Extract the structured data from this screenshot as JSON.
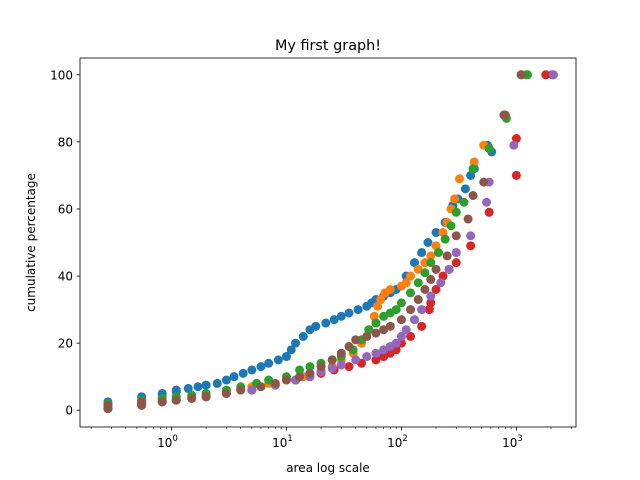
{
  "chart_data": {
    "type": "scatter",
    "title": "My first graph!",
    "xlabel": "area log scale",
    "ylabel": "cumulative percentage",
    "xscale": "log",
    "xlim": [
      0.16,
      3300
    ],
    "ylim": [
      -5,
      105
    ],
    "grid": false,
    "legend": "none",
    "x_ticks": [
      {
        "value": 1,
        "base": "10",
        "exp": "0"
      },
      {
        "value": 10,
        "base": "10",
        "exp": "1"
      },
      {
        "value": 100,
        "base": "10",
        "exp": "2"
      },
      {
        "value": 1000,
        "base": "10",
        "exp": "3"
      }
    ],
    "y_ticks": [
      {
        "value": 0,
        "label": "0"
      },
      {
        "value": 20,
        "label": "20"
      },
      {
        "value": 40,
        "label": "40"
      },
      {
        "value": 60,
        "label": "60"
      },
      {
        "value": 80,
        "label": "80"
      },
      {
        "value": 100,
        "label": "100"
      }
    ],
    "series": [
      {
        "color": "#1f77b4",
        "points": [
          [
            0.28,
            0.5
          ],
          [
            0.28,
            1.5
          ],
          [
            0.28,
            2.5
          ],
          [
            0.55,
            2.0
          ],
          [
            0.55,
            3.0
          ],
          [
            0.55,
            4.0
          ],
          [
            0.83,
            4.0
          ],
          [
            0.83,
            5.0
          ],
          [
            1.1,
            5.5
          ],
          [
            1.1,
            6.0
          ],
          [
            1.4,
            6.5
          ],
          [
            1.7,
            7.0
          ],
          [
            2.0,
            7.5
          ],
          [
            2.5,
            8.0
          ],
          [
            3.0,
            9.0
          ],
          [
            3.5,
            10.0
          ],
          [
            4.2,
            11.0
          ],
          [
            5.0,
            12.0
          ],
          [
            6.0,
            13.0
          ],
          [
            7.0,
            14.0
          ],
          [
            8.5,
            15.0
          ],
          [
            10,
            16.0
          ],
          [
            11,
            18.0
          ],
          [
            12,
            20.0
          ],
          [
            14,
            22.0
          ],
          [
            16,
            24.0
          ],
          [
            18,
            25.0
          ],
          [
            22,
            26.0
          ],
          [
            26,
            27.0
          ],
          [
            30,
            28.0
          ],
          [
            35,
            29.0
          ],
          [
            42,
            30.0
          ],
          [
            50,
            31.0
          ],
          [
            55,
            32.0
          ],
          [
            60,
            33.0
          ],
          [
            70,
            34.0
          ],
          [
            80,
            35.0
          ],
          [
            90,
            36.0
          ],
          [
            110,
            40.0
          ],
          [
            130,
            44.0
          ],
          [
            150,
            47.0
          ],
          [
            170,
            50.0
          ],
          [
            200,
            53.0
          ],
          [
            240,
            56.0
          ],
          [
            280,
            61.0
          ],
          [
            310,
            63.0
          ],
          [
            360,
            66.0
          ],
          [
            400,
            70.0
          ],
          [
            430,
            72.0
          ],
          [
            560,
            79.0
          ],
          [
            610,
            77.0
          ],
          [
            1100,
            100.0
          ],
          [
            2050,
            100.0
          ]
        ]
      },
      {
        "color": "#ff7f0e",
        "points": [
          [
            0.28,
            0.5
          ],
          [
            0.28,
            1.5
          ],
          [
            0.55,
            1.5
          ],
          [
            0.55,
            2.5
          ],
          [
            0.83,
            3.0
          ],
          [
            1.1,
            3.5
          ],
          [
            1.5,
            4.0
          ],
          [
            2.0,
            4.5
          ],
          [
            3.0,
            5.5
          ],
          [
            4.0,
            6.5
          ],
          [
            5.0,
            7.0
          ],
          [
            7.0,
            8.0
          ],
          [
            10,
            9.0
          ],
          [
            14,
            10.0
          ],
          [
            20,
            12.0
          ],
          [
            25,
            13.0
          ],
          [
            30,
            15.0
          ],
          [
            38,
            17.0
          ],
          [
            45,
            20.0
          ],
          [
            52,
            24.0
          ],
          [
            58,
            28.0
          ],
          [
            62,
            31.0
          ],
          [
            66,
            33.0
          ],
          [
            72,
            35.0
          ],
          [
            80,
            36.0
          ],
          [
            100,
            37.0
          ],
          [
            110,
            38.0
          ],
          [
            120,
            40.0
          ],
          [
            140,
            42.0
          ],
          [
            160,
            44.0
          ],
          [
            180,
            46.0
          ],
          [
            200,
            49.0
          ],
          [
            230,
            53.0
          ],
          [
            250,
            56.0
          ],
          [
            270,
            60.0
          ],
          [
            290,
            63.0
          ],
          [
            320,
            69.0
          ],
          [
            430,
            74.0
          ],
          [
            520,
            79.0
          ],
          [
            780,
            88.0
          ],
          [
            1200,
            100.0
          ]
        ]
      },
      {
        "color": "#2ca02c",
        "points": [
          [
            0.28,
            0.5
          ],
          [
            0.28,
            2.0
          ],
          [
            0.55,
            2.0
          ],
          [
            0.55,
            3.0
          ],
          [
            0.83,
            3.5
          ],
          [
            1.1,
            4.0
          ],
          [
            1.5,
            4.5
          ],
          [
            2.0,
            5.0
          ],
          [
            3.0,
            6.0
          ],
          [
            4.0,
            7.0
          ],
          [
            5.5,
            8.0
          ],
          [
            7.0,
            9.0
          ],
          [
            10,
            10.0
          ],
          [
            13,
            12.0
          ],
          [
            16,
            13.0
          ],
          [
            20,
            14.0
          ],
          [
            25,
            15.0
          ],
          [
            30,
            16.0
          ],
          [
            38,
            18.0
          ],
          [
            45,
            21.0
          ],
          [
            52,
            24.0
          ],
          [
            60,
            26.0
          ],
          [
            70,
            28.0
          ],
          [
            80,
            29.0
          ],
          [
            90,
            30.0
          ],
          [
            100,
            32.0
          ],
          [
            120,
            35.0
          ],
          [
            140,
            38.0
          ],
          [
            160,
            41.0
          ],
          [
            180,
            44.0
          ],
          [
            210,
            47.0
          ],
          [
            240,
            51.0
          ],
          [
            270,
            55.0
          ],
          [
            300,
            59.0
          ],
          [
            350,
            62.0
          ],
          [
            420,
            72.0
          ],
          [
            580,
            78.0
          ],
          [
            820,
            87.0
          ],
          [
            1250,
            100.0
          ]
        ]
      },
      {
        "color": "#d62728",
        "points": [
          [
            0.28,
            0.5
          ],
          [
            0.55,
            1.5
          ],
          [
            0.83,
            2.5
          ],
          [
            1.1,
            3.0
          ],
          [
            2.0,
            4.0
          ],
          [
            3.0,
            5.0
          ],
          [
            5.0,
            6.0
          ],
          [
            8.0,
            7.5
          ],
          [
            12,
            9.0
          ],
          [
            16,
            10.0
          ],
          [
            20,
            11.0
          ],
          [
            26,
            12.0
          ],
          [
            35,
            13.0
          ],
          [
            45,
            14.0
          ],
          [
            60,
            15.0
          ],
          [
            70,
            16.0
          ],
          [
            80,
            17.0
          ],
          [
            90,
            18.0
          ],
          [
            100,
            20.0
          ],
          [
            120,
            22.0
          ],
          [
            150,
            25.0
          ],
          [
            175,
            30.0
          ],
          [
            180,
            32.0
          ],
          [
            200,
            36.0
          ],
          [
            230,
            40.0
          ],
          [
            260,
            42.0
          ],
          [
            300,
            44.0
          ],
          [
            400,
            49.0
          ],
          [
            580,
            59.0
          ],
          [
            1000,
            70.0
          ],
          [
            1000,
            81.0
          ],
          [
            1800,
            100.0
          ]
        ]
      },
      {
        "color": "#9467bd",
        "points": [
          [
            0.28,
            0.5
          ],
          [
            0.55,
            1.5
          ],
          [
            0.83,
            2.5
          ],
          [
            1.1,
            3.0
          ],
          [
            2.0,
            4.0
          ],
          [
            3.0,
            5.0
          ],
          [
            5.0,
            6.0
          ],
          [
            8.0,
            7.5
          ],
          [
            12,
            9.0
          ],
          [
            16,
            10.0
          ],
          [
            20,
            11.5
          ],
          [
            25,
            12.5
          ],
          [
            30,
            13.5
          ],
          [
            40,
            15.0
          ],
          [
            50,
            16.0
          ],
          [
            60,
            17.0
          ],
          [
            70,
            18.0
          ],
          [
            80,
            19.0
          ],
          [
            90,
            20.0
          ],
          [
            100,
            22.0
          ],
          [
            110,
            24.0
          ],
          [
            130,
            27.0
          ],
          [
            150,
            30.0
          ],
          [
            180,
            34.0
          ],
          [
            220,
            38.0
          ],
          [
            260,
            42.0
          ],
          [
            300,
            47.0
          ],
          [
            400,
            52.0
          ],
          [
            550,
            62.0
          ],
          [
            580,
            68.0
          ],
          [
            950,
            79.0
          ],
          [
            2100,
            100.0
          ]
        ]
      },
      {
        "color": "#8c564b",
        "points": [
          [
            0.28,
            0.5
          ],
          [
            0.28,
            1.5
          ],
          [
            0.55,
            1.5
          ],
          [
            0.55,
            2.5
          ],
          [
            0.83,
            2.5
          ],
          [
            1.1,
            3.0
          ],
          [
            1.5,
            3.5
          ],
          [
            2.0,
            4.0
          ],
          [
            3.0,
            5.0
          ],
          [
            4.0,
            6.0
          ],
          [
            6.0,
            7.0
          ],
          [
            8.0,
            8.0
          ],
          [
            10,
            9.0
          ],
          [
            13,
            10.0
          ],
          [
            16,
            11.0
          ],
          [
            20,
            13.0
          ],
          [
            25,
            15.0
          ],
          [
            30,
            17.0
          ],
          [
            35,
            19.0
          ],
          [
            40,
            21.0
          ],
          [
            50,
            22.0
          ],
          [
            60,
            23.0
          ],
          [
            70,
            24.0
          ],
          [
            80,
            25.0
          ],
          [
            100,
            27.0
          ],
          [
            120,
            30.0
          ],
          [
            140,
            33.0
          ],
          [
            160,
            36.0
          ],
          [
            180,
            39.0
          ],
          [
            200,
            42.0
          ],
          [
            250,
            46.0
          ],
          [
            300,
            52.0
          ],
          [
            380,
            57.0
          ],
          [
            420,
            64.0
          ],
          [
            520,
            68.0
          ],
          [
            780,
            88.0
          ],
          [
            800,
            88.0
          ],
          [
            1100,
            100.0
          ]
        ]
      }
    ]
  }
}
